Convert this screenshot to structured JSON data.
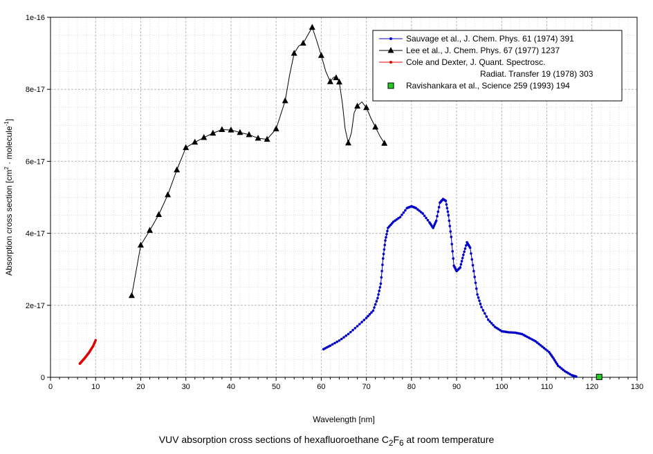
{
  "caption": {
    "before": "VUV absorption cross sections of hexafluoroethane C",
    "sub1": "2",
    "mid": "F",
    "sub2": "6",
    "after": " at room temperature"
  },
  "chart_data": {
    "type": "line",
    "title": "VUV absorption cross sections of hexafluoroethane C2F6 at room temperature",
    "xlabel": "Wavelength [nm]",
    "ylabel": {
      "before": "Absorption cross section [cm",
      "sup1": "2",
      "mid": " molecule",
      "sup2": "-1",
      "after": "]"
    },
    "xlim": [
      0,
      130
    ],
    "ylim": [
      0,
      1e-16
    ],
    "x_ticks": [
      0,
      10,
      20,
      30,
      40,
      50,
      60,
      70,
      80,
      90,
      100,
      110,
      120,
      130
    ],
    "x_tick_labels": [
      "0",
      "10",
      "20",
      "30",
      "40",
      "50",
      "60",
      "70",
      "80",
      "90",
      "100",
      "110",
      "120",
      "130"
    ],
    "y_ticks": [
      0,
      2e-17,
      4e-17,
      6e-17,
      8e-17,
      1e-16
    ],
    "y_tick_labels": [
      "0",
      "2e-17",
      "4e-17",
      "6e-17",
      "8e-17",
      "1e-16"
    ],
    "grid": true,
    "legend_position": "top-right",
    "series": [
      {
        "name": "Sauvage et al., J. Chem. Phys. 61 (1974) 391",
        "color": "#0000c8",
        "marker": "dot",
        "points": [
          [
            60.5,
            7.8e-18
          ],
          [
            62,
            8.8e-18
          ],
          [
            64,
            1.02e-17
          ],
          [
            66,
            1.2e-17
          ],
          [
            68,
            1.42e-17
          ],
          [
            70,
            1.65e-17
          ],
          [
            71.5,
            1.85e-17
          ],
          [
            72.5,
            2.2e-17
          ],
          [
            73.2,
            2.6e-17
          ],
          [
            73.7,
            3.3e-17
          ],
          [
            74.2,
            3.8e-17
          ],
          [
            74.8,
            4.15e-17
          ],
          [
            76,
            4.32e-17
          ],
          [
            77.5,
            4.45e-17
          ],
          [
            79,
            4.7e-17
          ],
          [
            80,
            4.75e-17
          ],
          [
            81,
            4.7e-17
          ],
          [
            82.5,
            4.55e-17
          ],
          [
            84,
            4.3e-17
          ],
          [
            84.8,
            4.15e-17
          ],
          [
            85.5,
            4.35e-17
          ],
          [
            86.3,
            4.85e-17
          ],
          [
            87,
            4.95e-17
          ],
          [
            87.6,
            4.9e-17
          ],
          [
            88.2,
            4.5e-17
          ],
          [
            88.8,
            3.9e-17
          ],
          [
            89.4,
            3.1e-17
          ],
          [
            90,
            2.95e-17
          ],
          [
            90.8,
            3.05e-17
          ],
          [
            91.5,
            3.4e-17
          ],
          [
            92.3,
            3.75e-17
          ],
          [
            93,
            3.6e-17
          ],
          [
            93.8,
            2.95e-17
          ],
          [
            94.6,
            2.3e-17
          ],
          [
            95.5,
            1.95e-17
          ],
          [
            97,
            1.6e-17
          ],
          [
            98.5,
            1.4e-17
          ],
          [
            100,
            1.28e-17
          ],
          [
            101.5,
            1.25e-17
          ],
          [
            103,
            1.24e-17
          ],
          [
            104.5,
            1.2e-17
          ],
          [
            106,
            1.1e-17
          ],
          [
            107.5,
            1e-17
          ],
          [
            109,
            8.5e-18
          ],
          [
            110.5,
            7e-18
          ],
          [
            111.5,
            5.2e-18
          ],
          [
            112.5,
            3.2e-18
          ],
          [
            114,
            1.7e-18
          ],
          [
            115.5,
            6e-19
          ],
          [
            116.5,
            2e-19
          ]
        ]
      },
      {
        "name": "Lee et al., J. Chem. Phys. 67 (1977) 1237",
        "color": "#000000",
        "marker": "triangle",
        "points": [
          [
            18,
            2.27e-17
          ],
          [
            20,
            3.67e-17
          ],
          [
            22,
            4.08e-17
          ],
          [
            24,
            4.52e-17
          ],
          [
            26,
            5.07e-17
          ],
          [
            28,
            5.76e-17
          ],
          [
            30,
            6.38e-17
          ],
          [
            32,
            6.53e-17
          ],
          [
            34,
            6.66e-17
          ],
          [
            36,
            6.78e-17
          ],
          [
            38,
            6.88e-17
          ],
          [
            40,
            6.87e-17
          ],
          [
            42,
            6.8e-17
          ],
          [
            44,
            6.74e-17
          ],
          [
            46,
            6.64e-17
          ],
          [
            48,
            6.61e-17
          ],
          [
            50,
            6.9e-17
          ],
          [
            52,
            7.68e-17
          ],
          [
            54,
            9e-17
          ],
          [
            56,
            9.28e-17
          ],
          [
            58,
            9.72e-17
          ],
          [
            60,
            8.94e-17
          ],
          [
            62,
            8.21e-17
          ],
          [
            63.3,
            8.32e-17
          ],
          [
            64,
            8.2e-17
          ],
          [
            66,
            6.51e-17
          ],
          [
            68,
            7.53e-17
          ],
          [
            70,
            7.49e-17
          ],
          [
            72,
            6.95e-17
          ],
          [
            74,
            6.5e-17
          ]
        ],
        "smooth_points": [
          [
            18,
            2.27e-17
          ],
          [
            20,
            3.67e-17
          ],
          [
            22,
            4.08e-17
          ],
          [
            24,
            4.52e-17
          ],
          [
            26,
            5.07e-17
          ],
          [
            28,
            5.76e-17
          ],
          [
            30,
            6.38e-17
          ],
          [
            32,
            6.53e-17
          ],
          [
            34,
            6.66e-17
          ],
          [
            36,
            6.78e-17
          ],
          [
            38,
            6.88e-17
          ],
          [
            40,
            6.87e-17
          ],
          [
            42,
            6.8e-17
          ],
          [
            44,
            6.74e-17
          ],
          [
            46,
            6.64e-17
          ],
          [
            48,
            6.61e-17
          ],
          [
            50,
            6.9e-17
          ],
          [
            52,
            7.68e-17
          ],
          [
            53,
            8.4e-17
          ],
          [
            54,
            9e-17
          ],
          [
            55,
            9.2e-17
          ],
          [
            56,
            9.28e-17
          ],
          [
            57,
            9.5e-17
          ],
          [
            58,
            9.72e-17
          ],
          [
            59,
            9.35e-17
          ],
          [
            60,
            8.94e-17
          ],
          [
            61,
            8.5e-17
          ],
          [
            62,
            8.21e-17
          ],
          [
            62.7,
            8.33e-17
          ],
          [
            63.3,
            8.35e-17
          ],
          [
            64,
            8.2e-17
          ],
          [
            64.7,
            7.6e-17
          ],
          [
            65.3,
            6.9e-17
          ],
          [
            66,
            6.51e-17
          ],
          [
            66.7,
            6.8e-17
          ],
          [
            67.3,
            7.35e-17
          ],
          [
            68,
            7.53e-17
          ],
          [
            69,
            7.65e-17
          ],
          [
            70,
            7.49e-17
          ],
          [
            71,
            7.2e-17
          ],
          [
            72,
            6.95e-17
          ],
          [
            73,
            6.7e-17
          ],
          [
            74,
            6.5e-17
          ]
        ]
      },
      {
        "name": "Cole and Dexter, J. Quant. Spectrosc. Radiat. Transfer 19 (1978) 303",
        "legend_lines": [
          "Cole and Dexter, J. Quant. Spectrosc.",
          "Radiat. Transfer 19 (1978) 303"
        ],
        "color": "#e00000",
        "marker": "dot",
        "points": [
          [
            6.5,
            3.8e-18
          ],
          [
            7,
            4.5e-18
          ],
          [
            7.5,
            5.2e-18
          ],
          [
            8,
            6e-18
          ],
          [
            8.5,
            6.8e-18
          ],
          [
            9,
            7.8e-18
          ],
          [
            9.5,
            8.8e-18
          ],
          [
            10,
            1.03e-17
          ]
        ]
      },
      {
        "name": "Ravishankara et al., Science 259 (1993) 194",
        "color": "#22cc22",
        "marker": "square",
        "points": [
          [
            121.6,
            1e-19
          ]
        ]
      }
    ]
  }
}
